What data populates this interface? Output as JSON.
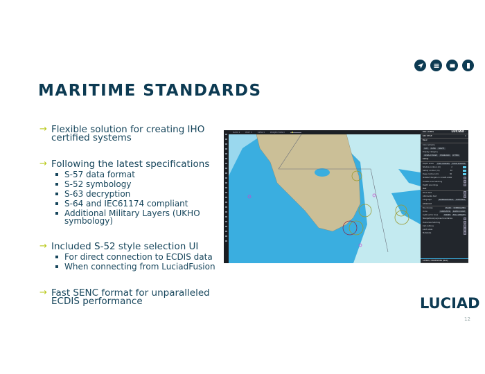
{
  "nav_icons": [
    "navigate-icon",
    "menu-icon",
    "window-icon",
    "mobile-icon"
  ],
  "title": "MARITIME STANDARDS",
  "bullets": [
    {
      "text": "Flexible solution for creating IHO",
      "text2": "certified systems"
    },
    {
      "text": "Following the latest specifications",
      "subs": [
        "S-57 data format",
        "S-52 symbology",
        "S-63 decryption",
        "S-64 and IEC61174 compliant",
        "Additional Military Layers (UKHO",
        "symbology)"
      ]
    },
    {
      "text": "Included S-52 style selection UI",
      "subs": [
        "For direct connection to ECDIS data",
        "When connecting from LuciadFusion"
      ]
    },
    {
      "text": "Fast SENC format for unparalleled",
      "text2": "ECDIS performance"
    }
  ],
  "logo": "LUCIAD",
  "page_number": "12",
  "colors": {
    "title": "#0c3a52",
    "text": "#17465c",
    "arrow": "#b9c91a",
    "land": "#cbbf97",
    "shallow": "#3aaee0",
    "deep": "#c3eaf0"
  },
  "screenshot": {
    "brand": "LUCIAD",
    "menu": [
      "DATA ▾",
      "EDIT ▾",
      "VIEW ▾",
      "PROJECTION ▾"
    ],
    "panel": {
      "layers_header": "ENC LAYERS",
      "style_header": "S52 STYLE",
      "basic": "Basic",
      "color_scheme": "Color scheme",
      "color_options": [
        "DAY",
        "DUSK",
        "NIGHT"
      ],
      "display_category": "Display category",
      "display_options": [
        "DISPLAY BASE",
        "STANDARD",
        "OTHER"
      ],
      "safety": "Safety",
      "depth_areas": "Depth areas",
      "depth_options": [
        "TWO SHADES",
        "FOUR SHADES"
      ],
      "shallow": "Shallow contour (m)",
      "safety_contour": "Safety contour (m)",
      "deep": "Deep contour (m)",
      "shallow_val": "2",
      "safety_val": "30",
      "deep_val": "30",
      "isolated": "Isolated dangers in unsafe water",
      "unsafe_hatch": "Unsafe zone hatching",
      "soundings": "Depth soundings",
      "text": "Text",
      "show_text": "Show text",
      "abbrev": "Abbreviate text",
      "language": "Language",
      "lang_options": [
        "INTERNATIONAL",
        "NATIONAL"
      ],
      "advanced": "Advanced",
      "boundaries": "Boundaries",
      "boundary_options": [
        "PLAIN",
        "SYMBOLIZED"
      ],
      "icons": "Icons",
      "icon_options": [
        "SIMPLIFIED",
        "PAPER CHART"
      ],
      "light_sector": "Light sector lines",
      "light_options": [
        "SHORT",
        "FULL LENGTH"
      ],
      "nav_purpose": "Navigational purpose boundaries",
      "overscale": "Overscale hatching",
      "cell_outlines": "Cell outlines",
      "land_areas": "Land areas",
      "metadata": "Metadata",
      "footer": "LAYERS / PROPERTIES (MAP)"
    }
  }
}
